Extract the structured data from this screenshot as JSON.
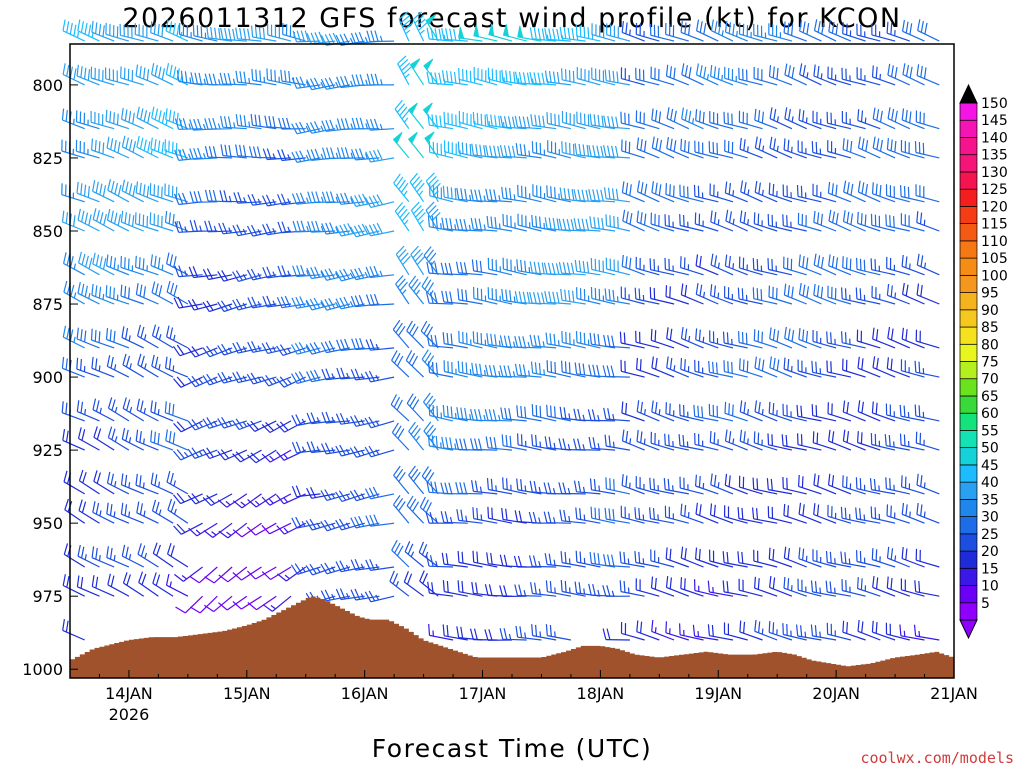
{
  "chart_data": {
    "type": "wind_barb_time_height",
    "title": "2026011312 GFS forecast wind profile (kt) for KCON",
    "xlabel": "Forecast Time (UTC)",
    "ylabel": "",
    "credit": "coolwx.com/models",
    "y_range_hpa": [
      1003,
      786
    ],
    "y_ticks": [
      800,
      825,
      850,
      875,
      900,
      925,
      950,
      975,
      1000
    ],
    "x_range_days": [
      13.5,
      21.0
    ],
    "x_ticks": [
      {
        "day": 14,
        "label": "14JAN",
        "sub": "2026"
      },
      {
        "day": 15,
        "label": "15JAN"
      },
      {
        "day": 16,
        "label": "16JAN"
      },
      {
        "day": 17,
        "label": "17JAN"
      },
      {
        "day": 18,
        "label": "18JAN"
      },
      {
        "day": 19,
        "label": "19JAN"
      },
      {
        "day": 20,
        "label": "20JAN"
      },
      {
        "day": 21,
        "label": "21JAN"
      }
    ],
    "terrain_surface_pressure": [
      [
        13.5,
        997
      ],
      [
        13.6,
        995
      ],
      [
        13.7,
        993
      ],
      [
        13.8,
        992
      ],
      [
        13.9,
        991
      ],
      [
        14.0,
        990
      ],
      [
        14.2,
        989
      ],
      [
        14.4,
        989
      ],
      [
        14.6,
        988
      ],
      [
        14.8,
        987
      ],
      [
        15.0,
        985
      ],
      [
        15.15,
        983
      ],
      [
        15.3,
        980
      ],
      [
        15.45,
        977
      ],
      [
        15.55,
        975
      ],
      [
        15.65,
        976
      ],
      [
        15.75,
        978
      ],
      [
        15.85,
        980
      ],
      [
        15.95,
        982
      ],
      [
        16.05,
        983
      ],
      [
        16.2,
        983
      ],
      [
        16.35,
        986
      ],
      [
        16.5,
        990
      ],
      [
        16.65,
        992
      ],
      [
        16.8,
        994
      ],
      [
        16.95,
        996
      ],
      [
        17.1,
        996
      ],
      [
        17.5,
        996
      ],
      [
        17.7,
        994
      ],
      [
        17.85,
        992
      ],
      [
        18.0,
        992
      ],
      [
        18.15,
        993
      ],
      [
        18.3,
        995
      ],
      [
        18.5,
        996
      ],
      [
        18.7,
        995
      ],
      [
        18.9,
        994
      ],
      [
        19.1,
        995
      ],
      [
        19.3,
        995
      ],
      [
        19.5,
        994
      ],
      [
        19.65,
        995
      ],
      [
        19.8,
        997
      ],
      [
        19.95,
        998
      ],
      [
        20.1,
        999
      ],
      [
        20.3,
        998
      ],
      [
        20.5,
        996
      ],
      [
        20.7,
        995
      ],
      [
        20.85,
        994
      ],
      [
        21.0,
        996
      ]
    ],
    "barb_grid": {
      "times": "every 3 h, 13.5 to 21.0 JAN",
      "levels_hpa": [
        785,
        800,
        815,
        825,
        840,
        850,
        865,
        875,
        890,
        900,
        915,
        925,
        940,
        950,
        965,
        975,
        990,
        1000
      ]
    },
    "wind_phases": [
      {
        "from": 13.5,
        "to": 14.6,
        "dir_deg_aloft": 290,
        "dir_deg_low": 300,
        "speed_kt_aloft": 45,
        "speed_kt_low": 15
      },
      {
        "from": 14.6,
        "to": 15.6,
        "dir_deg_aloft": 280,
        "dir_deg_low": 225,
        "speed_kt_aloft": 35,
        "speed_kt_low": 10
      },
      {
        "from": 15.6,
        "to": 16.35,
        "dir_deg_aloft": 265,
        "dir_deg_low": 255,
        "speed_kt_aloft": 40,
        "speed_kt_low": 20
      },
      {
        "from": 16.35,
        "to": 16.75,
        "dir_deg_aloft": 330,
        "dir_deg_low": 310,
        "speed_kt_aloft": 50,
        "speed_kt_low": 20
      },
      {
        "from": 16.75,
        "to": 18.3,
        "dir_deg_aloft": 280,
        "dir_deg_low": 275,
        "speed_kt_aloft": 45,
        "speed_kt_low": 20
      },
      {
        "from": 18.3,
        "to": 21.0,
        "dir_deg_aloft": 290,
        "dir_deg_low": 285,
        "speed_kt_aloft": 30,
        "speed_kt_low": 20
      }
    ]
  },
  "colorbar": {
    "labels": [
      "5",
      "10",
      "15",
      "20",
      "25",
      "30",
      "35",
      "40",
      "45",
      "50",
      "55",
      "60",
      "65",
      "70",
      "75",
      "80",
      "85",
      "90",
      "95",
      "100",
      "105",
      "110",
      "115",
      "120",
      "125",
      "130",
      "135",
      "140",
      "145",
      "150"
    ],
    "colors": [
      "#8f00ff",
      "#6a00f5",
      "#3b17e8",
      "#1e2bd9",
      "#1c4ee0",
      "#1e6de8",
      "#1f86ec",
      "#2aa0f0",
      "#1cbcff",
      "#14d2d8",
      "#14e2b4",
      "#14e27a",
      "#3ad93a",
      "#6ae21e",
      "#b4ef1e",
      "#e8f51e",
      "#f5e11e",
      "#f5c81e",
      "#f5b41e",
      "#f5961e",
      "#f58c14",
      "#f57814",
      "#f55a14",
      "#f53c14",
      "#f51e1e",
      "#f51450",
      "#f51478",
      "#f5148c",
      "#f514b4",
      "#f514e6"
    ],
    "top_arrow_color": "#000000",
    "bottom_arrow_color": "#8f00ff"
  },
  "colors": {
    "terrain": "#a0522d",
    "frame": "#000000"
  }
}
